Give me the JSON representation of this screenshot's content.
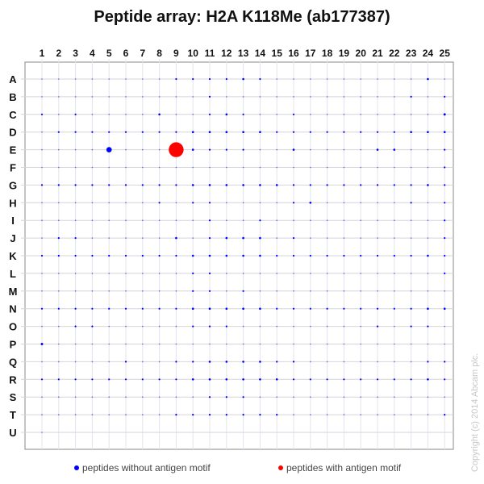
{
  "chart_data": {
    "type": "scatter",
    "title": "Peptide array:  H2A K118Me (ab177387)",
    "columns": [
      "1",
      "2",
      "3",
      "4",
      "5",
      "6",
      "7",
      "8",
      "9",
      "10",
      "11",
      "12",
      "13",
      "14",
      "15",
      "16",
      "17",
      "18",
      "19",
      "20",
      "21",
      "22",
      "23",
      "24",
      "25"
    ],
    "rows": [
      "A",
      "B",
      "C",
      "D",
      "E",
      "F",
      "G",
      "H",
      "I",
      "J",
      "K",
      "L",
      "M",
      "N",
      "O",
      "P",
      "Q",
      "R",
      "S",
      "T",
      "U"
    ],
    "grid": true,
    "legend_position": "bottom",
    "series": [
      {
        "name": "peptides without antigen motif",
        "color": "#0000ff"
      },
      {
        "name": "peptides with antigen motif",
        "color": "#ff0000"
      }
    ],
    "antigen_spots": [
      [
        "E",
        "9"
      ]
    ],
    "intensity_relative": [
      [
        0.5,
        0.5,
        0.5,
        0.5,
        0.5,
        0.5,
        0.5,
        0.5,
        1,
        1,
        1,
        1,
        1.5,
        1,
        0.5,
        0.5,
        0.5,
        0.5,
        0.5,
        0.5,
        0.5,
        0.5,
        0.5,
        1.5,
        0.5
      ],
      [
        0.5,
        0.5,
        0.5,
        0.5,
        0.5,
        0.5,
        0.5,
        0.5,
        0.5,
        0.5,
        1,
        0.5,
        0.5,
        0.5,
        0.5,
        0.5,
        0.5,
        0.5,
        0.5,
        0.5,
        0.5,
        0.5,
        1,
        0.5,
        1
      ],
      [
        1,
        0.5,
        1,
        0.5,
        0.5,
        0.5,
        0.5,
        1.5,
        0.5,
        0.5,
        1,
        1.5,
        1,
        0.5,
        0.5,
        1,
        0.5,
        0.5,
        0.5,
        0.5,
        0.5,
        0.5,
        0.5,
        0.5,
        2
      ],
      [
        0.5,
        1,
        1,
        1,
        1,
        1,
        1,
        1,
        1,
        1.5,
        1.5,
        1.5,
        1.5,
        1.5,
        1,
        1,
        1,
        1,
        1,
        1,
        1,
        1,
        1.5,
        1.5,
        1.5
      ],
      [
        0.5,
        0.5,
        0.5,
        0.5,
        12,
        0.5,
        0.5,
        0.5,
        100,
        1.5,
        1,
        1,
        1,
        0.5,
        0.5,
        1.5,
        0.5,
        0.5,
        0.5,
        0.5,
        1.5,
        1.5,
        0.5,
        0.5,
        1
      ],
      [
        0.5,
        0.5,
        0.5,
        0.5,
        0.5,
        0.5,
        0.5,
        0.5,
        0.5,
        0.5,
        0.5,
        0.5,
        0.5,
        0.5,
        0.5,
        0.5,
        0.5,
        0.5,
        0.5,
        0.5,
        0.5,
        0.5,
        0.5,
        0.5,
        1
      ],
      [
        1,
        1,
        1,
        1,
        1,
        1,
        1,
        1,
        1,
        1.5,
        1.5,
        1.5,
        1.5,
        1.5,
        1.5,
        1,
        1,
        1,
        1,
        1,
        1,
        1,
        1,
        1.5,
        1
      ],
      [
        0.5,
        0.5,
        0.5,
        0.5,
        0.5,
        0.5,
        0.5,
        1,
        0.5,
        1,
        1,
        0.5,
        0.5,
        0.5,
        0.5,
        1,
        1.5,
        0.5,
        0.5,
        0.5,
        0.5,
        0.5,
        1,
        0.5,
        1
      ],
      [
        0.5,
        0.5,
        0.5,
        0.5,
        0.5,
        0.5,
        0.5,
        0.5,
        0.5,
        0.5,
        1,
        0.5,
        0.5,
        1,
        0.5,
        0.5,
        0.5,
        0.5,
        0.5,
        0.5,
        0.5,
        0.5,
        0.5,
        0.5,
        1
      ],
      [
        0.5,
        1,
        1,
        0.5,
        0.5,
        0.5,
        0.5,
        0.5,
        1.5,
        0.5,
        1,
        1.5,
        1.5,
        1.5,
        0.5,
        1,
        0.5,
        0.5,
        0.5,
        0.5,
        0.5,
        0.5,
        0.5,
        0.5,
        1
      ],
      [
        1,
        1,
        1,
        1,
        1,
        1,
        1,
        1,
        1,
        1.5,
        1.5,
        1.5,
        1.5,
        1.5,
        1,
        1,
        1,
        1,
        1,
        1,
        1,
        1,
        1,
        1.5,
        1
      ],
      [
        0.5,
        0.5,
        0.5,
        0.5,
        0.5,
        0.5,
        0.5,
        0.5,
        0.5,
        1,
        1,
        0.5,
        0.5,
        0.5,
        0.5,
        0.5,
        0.5,
        0.5,
        0.5,
        0.5,
        0.5,
        0.5,
        0.5,
        0.5,
        1
      ],
      [
        0.5,
        0.5,
        0.5,
        0.5,
        0.5,
        0.5,
        0.5,
        0.5,
        0.5,
        1,
        1,
        0.5,
        1,
        0.5,
        0.5,
        0.5,
        0.5,
        0.5,
        0.5,
        0.5,
        0.5,
        0.5,
        0.5,
        0.5,
        0.5
      ],
      [
        1,
        1,
        1,
        1,
        1,
        1,
        1,
        1,
        1,
        1.5,
        1.5,
        1.5,
        1.5,
        1.5,
        1,
        1,
        1,
        1,
        1,
        1,
        1,
        1,
        1,
        1.5,
        1.5
      ],
      [
        0.5,
        0.5,
        1,
        1,
        0.5,
        0.5,
        0.5,
        0.5,
        0.5,
        1,
        1,
        1,
        0.5,
        0.5,
        0.5,
        0.5,
        0.5,
        0.5,
        0.5,
        0.5,
        1,
        0.5,
        1,
        1,
        0.5
      ],
      [
        2,
        0.5,
        0.5,
        0.5,
        0.5,
        0.5,
        0.5,
        0.5,
        0.5,
        0.5,
        0.5,
        0.5,
        0.5,
        0.5,
        0.5,
        0.5,
        0.5,
        0.5,
        0.5,
        0.5,
        0.5,
        0.5,
        0.5,
        0.5,
        0.5
      ],
      [
        0.5,
        0.5,
        0.5,
        0.5,
        0.5,
        1,
        0.5,
        0.5,
        1,
        1,
        1.5,
        1.5,
        1.5,
        1.5,
        1,
        1,
        0.5,
        0.5,
        0.5,
        0.5,
        0.5,
        0.5,
        0.5,
        1,
        1
      ],
      [
        1,
        1,
        1,
        1,
        1,
        1,
        1,
        1,
        1,
        1.5,
        1.5,
        1.5,
        1.5,
        1.5,
        1.5,
        1,
        1,
        1,
        1,
        1,
        1,
        1,
        1,
        1.5,
        1
      ],
      [
        0.5,
        0.5,
        0.5,
        0.5,
        0.5,
        0.5,
        0.5,
        0.5,
        0.5,
        0.5,
        1,
        1,
        1,
        0.5,
        0.5,
        0.5,
        0.5,
        0.5,
        0.5,
        0.5,
        0.5,
        0.5,
        0.5,
        0.5,
        0.5
      ],
      [
        0.5,
        0.5,
        0.5,
        0.5,
        0.5,
        0.5,
        0.5,
        0.5,
        1,
        1,
        1,
        1,
        1,
        1,
        1,
        0.5,
        0.5,
        0.5,
        0.5,
        0.5,
        0.5,
        0.5,
        0.5,
        0.5,
        1
      ],
      [
        0.5
      ]
    ]
  },
  "copyright": "Copyright (c) 2014  Abcam plc."
}
